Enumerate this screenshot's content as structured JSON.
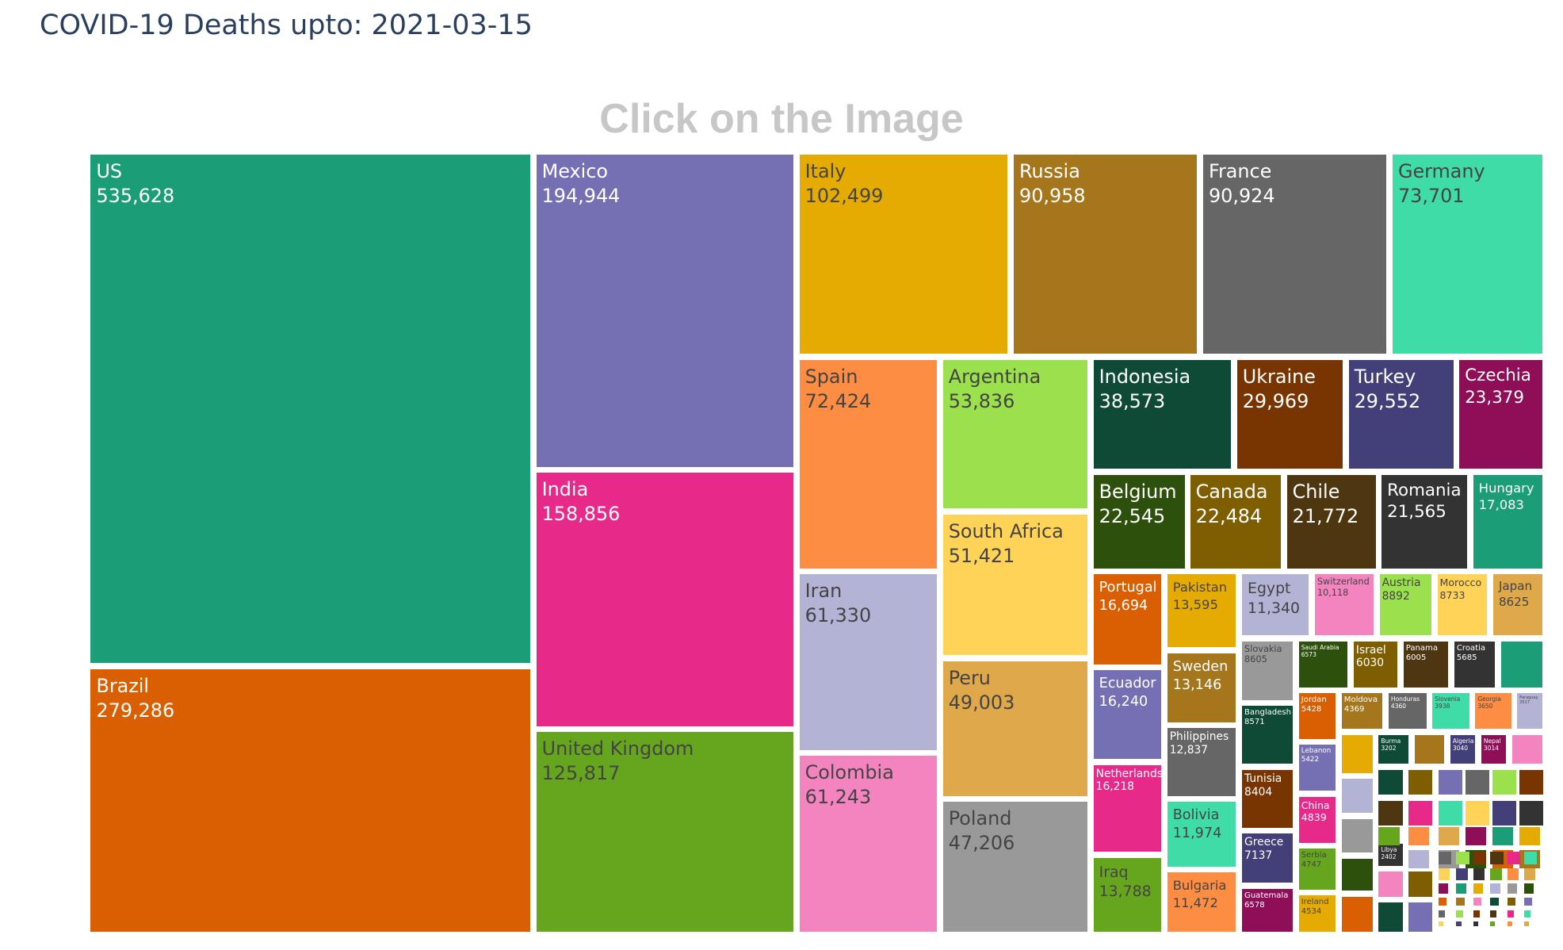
{
  "header": {
    "title": "COVID-19 Deaths upto: 2021-03-15",
    "subtitle": "Click on the Image"
  },
  "chart_data": {
    "type": "treemap",
    "title": "COVID-19 Deaths upto: 2021-03-15",
    "subtitle": "Click on the Image",
    "labeled_tiles": [
      {
        "name": "US",
        "value": 535628,
        "label": "535,628",
        "color": "#1b9e77"
      },
      {
        "name": "Brazil",
        "value": 279286,
        "label": "279,286",
        "color": "#d95f02"
      },
      {
        "name": "Mexico",
        "value": 194944,
        "label": "194,944",
        "color": "#7570b3"
      },
      {
        "name": "India",
        "value": 158856,
        "label": "158,856",
        "color": "#e7298a"
      },
      {
        "name": "United Kingdom",
        "value": 125817,
        "label": "125,817",
        "color": "#66a61e"
      },
      {
        "name": "Italy",
        "value": 102499,
        "label": "102,499",
        "color": "#e6ab02"
      },
      {
        "name": "Russia",
        "value": 90958,
        "label": "90,958",
        "color": "#a6761d"
      },
      {
        "name": "France",
        "value": 90924,
        "label": "90,924",
        "color": "#666666"
      },
      {
        "name": "Germany",
        "value": 73701,
        "label": "73,701",
        "color": "#40dca7"
      },
      {
        "name": "Spain",
        "value": 72424,
        "label": "72,424",
        "color": "#fc8d42"
      },
      {
        "name": "Iran",
        "value": 61330,
        "label": "61,330",
        "color": "#b3b3d6"
      },
      {
        "name": "Colombia",
        "value": 61243,
        "label": "61,243",
        "color": "#f384bf"
      },
      {
        "name": "Argentina",
        "value": 53836,
        "label": "53,836",
        "color": "#9be04d"
      },
      {
        "name": "South Africa",
        "value": 51421,
        "label": "51,421",
        "color": "#ffd358"
      },
      {
        "name": "Peru",
        "value": 49003,
        "label": "49,003",
        "color": "#dfa84a"
      },
      {
        "name": "Poland",
        "value": 47206,
        "label": "47,206",
        "color": "#999999"
      },
      {
        "name": "Indonesia",
        "value": 38573,
        "label": "38,573",
        "color": "#0e4a36"
      },
      {
        "name": "Ukraine",
        "value": 29969,
        "label": "29,969",
        "color": "#783401"
      },
      {
        "name": "Turkey",
        "value": 29552,
        "label": "29,552",
        "color": "#433f79"
      },
      {
        "name": "Czechia",
        "value": 23379,
        "label": "23,379",
        "color": "#8f0e58"
      },
      {
        "name": "Belgium",
        "value": 22545,
        "label": "22,545",
        "color": "#2e500d"
      },
      {
        "name": "Canada",
        "value": 22484,
        "label": "22,484",
        "color": "#7f5e01"
      },
      {
        "name": "Chile",
        "value": 21772,
        "label": "21,772",
        "color": "#4d3610"
      },
      {
        "name": "Romania",
        "value": 21565,
        "label": "21,565",
        "color": "#333333"
      },
      {
        "name": "Hungary",
        "value": 17083,
        "label": "17,083",
        "color": "#1b9e77"
      },
      {
        "name": "Portugal",
        "value": 16694,
        "label": "16,694",
        "color": "#d95f02"
      },
      {
        "name": "Ecuador",
        "value": 16240,
        "label": "16,240",
        "color": "#7570b3"
      },
      {
        "name": "Netherlands",
        "value": 16218,
        "label": "16,218",
        "color": "#e7298a"
      },
      {
        "name": "Iraq",
        "value": 13788,
        "label": "13,788",
        "color": "#66a61e"
      },
      {
        "name": "Pakistan",
        "value": 13595,
        "label": "13,595",
        "color": "#e6ab02"
      },
      {
        "name": "Sweden",
        "value": 13146,
        "label": "13,146",
        "color": "#a6761d"
      },
      {
        "name": "Philippines",
        "value": 12837,
        "label": "12,837",
        "color": "#666666"
      },
      {
        "name": "Bolivia",
        "value": 11974,
        "label": "11,974",
        "color": "#40dca7"
      },
      {
        "name": "Bulgaria",
        "value": 11472,
        "label": "11,472",
        "color": "#fc8d42"
      },
      {
        "name": "Egypt",
        "value": 11340,
        "label": "11,340",
        "color": "#b3b3d6"
      },
      {
        "name": "Switzerland",
        "value": 10118,
        "label": "10,118",
        "color": "#f384bf"
      },
      {
        "name": "Austria",
        "value": 8892,
        "label": "8892",
        "color": "#9be04d"
      },
      {
        "name": "Morocco",
        "value": 8733,
        "label": "8733",
        "color": "#ffd358"
      },
      {
        "name": "Japan",
        "value": 8625,
        "label": "8625",
        "color": "#dfa84a"
      },
      {
        "name": "Slovakia",
        "value": 8605,
        "label": "8605",
        "color": "#999999"
      },
      {
        "name": "Bangladesh",
        "value": 8571,
        "label": "8571",
        "color": "#0e4a36"
      },
      {
        "name": "Tunisia",
        "value": 8404,
        "label": "8404",
        "color": "#783401"
      },
      {
        "name": "Greece",
        "value": 7137,
        "label": "7137",
        "color": "#433f79"
      },
      {
        "name": "Guatemala",
        "value": 6578,
        "label": "6578",
        "color": "#8f0e58"
      },
      {
        "name": "Saudi Arabia",
        "value": 6573,
        "label": "6573",
        "color": "#2e500d"
      },
      {
        "name": "Israel",
        "value": 6030,
        "label": "6030",
        "color": "#7f5e01"
      },
      {
        "name": "Panama",
        "value": 6005,
        "label": "6005",
        "color": "#4d3610"
      },
      {
        "name": "Croatia",
        "value": 5685,
        "label": "5685",
        "color": "#333333"
      },
      {
        "name": "Jordan",
        "value": 5428,
        "label": "5428",
        "color": "#d95f02"
      },
      {
        "name": "Lebanon",
        "value": 5422,
        "label": "5422",
        "color": "#7570b3"
      },
      {
        "name": "China",
        "value": 4839,
        "label": "4839",
        "color": "#e7298a"
      },
      {
        "name": "Serbia",
        "value": 4747,
        "label": "4747",
        "color": "#66a61e"
      },
      {
        "name": "Ireland",
        "value": 4534,
        "label": "4534",
        "color": "#e6ab02"
      },
      {
        "name": "Moldova",
        "value": 4369,
        "label": "4369",
        "color": "#a6761d"
      },
      {
        "name": "Honduras",
        "value": 4360,
        "label": "4360",
        "color": "#666666"
      },
      {
        "name": "Slovenia",
        "value": 3938,
        "label": "3938",
        "color": "#40dca7"
      },
      {
        "name": "Georgia",
        "value": 3650,
        "label": "3650",
        "color": "#fc8d42"
      },
      {
        "name": "Paraguay",
        "value": 3517,
        "label": "3517",
        "color": "#b3b3d6"
      },
      {
        "name": "Burma",
        "value": 3202,
        "label": "3202",
        "color": "#0e4a36"
      },
      {
        "name": "Algeria",
        "value": 3040,
        "label": "3040",
        "color": "#433f79"
      },
      {
        "name": "Nepal",
        "value": 3014,
        "label": "3014",
        "color": "#8f0e58"
      },
      {
        "name": "Libya",
        "value": 2402,
        "label": "2402",
        "color": "#333333"
      }
    ]
  }
}
